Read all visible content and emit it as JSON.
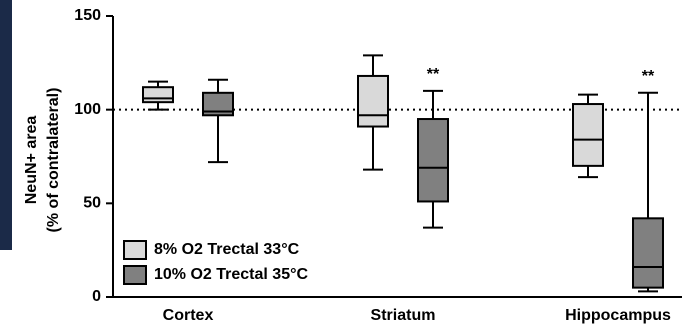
{
  "chart_data": {
    "type": "box",
    "y_label": "NeuN+ area",
    "y_label_2": "(% of contralateral)",
    "categories": [
      "Cortex",
      "Striatum",
      "Hippocampus"
    ],
    "ylim": [
      0,
      150
    ],
    "yticks": [
      0,
      50,
      100,
      150
    ],
    "reference_line": 100,
    "series": [
      {
        "name": "8% O2 Trectal 33°C",
        "color": "#d9d9d9",
        "values": [
          {
            "min": 100,
            "q1": 104,
            "median": 106,
            "q3": 112,
            "max": 115
          },
          {
            "min": 68,
            "q1": 91,
            "median": 97,
            "q3": 118,
            "max": 129
          },
          {
            "min": 64,
            "q1": 70,
            "median": 84,
            "q3": 103,
            "max": 108
          }
        ]
      },
      {
        "name": "10% O2 Trectal 35°C",
        "color": "#808080",
        "values": [
          {
            "min": 72,
            "q1": 97,
            "median": 99,
            "q3": 109,
            "max": 116
          },
          {
            "min": 37,
            "q1": 51,
            "median": 69,
            "q3": 95,
            "max": 110
          },
          {
            "min": 3,
            "q1": 5,
            "median": 16,
            "q3": 42,
            "max": 109
          }
        ],
        "annotations": [
          null,
          "**",
          "**"
        ]
      }
    ]
  }
}
